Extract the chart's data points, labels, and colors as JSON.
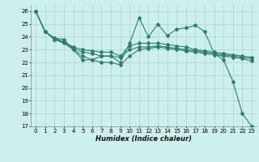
{
  "xlabel": "Humidex (Indice chaleur)",
  "ylabel": "",
  "bg_color": "#cef0ec",
  "grid_color": "#b0d8d4",
  "line_color": "#2e7d6e",
  "xlim": [
    -0.5,
    23.5
  ],
  "ylim": [
    17,
    26.5
  ],
  "yticks": [
    17,
    18,
    19,
    20,
    21,
    22,
    23,
    24,
    25,
    26
  ],
  "xticks": [
    0,
    1,
    2,
    3,
    4,
    5,
    6,
    7,
    8,
    9,
    10,
    11,
    12,
    13,
    14,
    15,
    16,
    17,
    18,
    19,
    20,
    21,
    22,
    23
  ],
  "series": [
    [
      26.0,
      24.4,
      23.9,
      23.8,
      23.0,
      22.2,
      22.2,
      22.5,
      22.5,
      22.0,
      23.5,
      25.5,
      24.0,
      25.0,
      24.1,
      24.6,
      24.7,
      24.9,
      24.4,
      22.7,
      22.2,
      20.5,
      18.0,
      17.0
    ],
    [
      26.0,
      24.4,
      23.9,
      23.6,
      23.2,
      23.0,
      22.9,
      22.8,
      22.8,
      22.5,
      23.3,
      23.5,
      23.5,
      23.5,
      23.4,
      23.3,
      23.2,
      23.0,
      22.9,
      22.8,
      22.7,
      22.6,
      22.5,
      22.4
    ],
    [
      26.0,
      24.4,
      23.8,
      23.6,
      23.1,
      22.8,
      22.7,
      22.5,
      22.5,
      22.4,
      23.0,
      23.2,
      23.2,
      23.3,
      23.2,
      23.1,
      23.0,
      22.9,
      22.8,
      22.7,
      22.6,
      22.5,
      22.4,
      22.3
    ],
    [
      26.0,
      24.4,
      23.8,
      23.5,
      23.0,
      22.5,
      22.2,
      22.0,
      22.0,
      21.8,
      22.5,
      23.0,
      23.1,
      23.2,
      23.1,
      23.0,
      22.9,
      22.8,
      22.7,
      22.6,
      22.5,
      22.4,
      22.3,
      22.1
    ]
  ]
}
